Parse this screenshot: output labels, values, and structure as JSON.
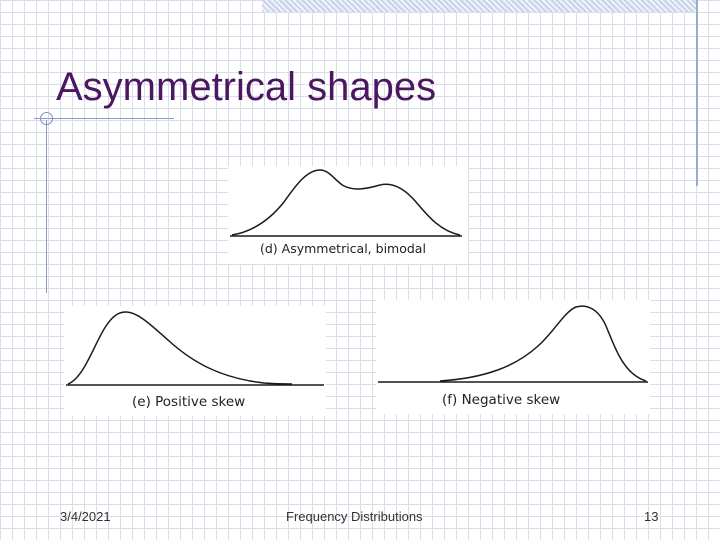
{
  "slide": {
    "title": "Asymmetrical shapes"
  },
  "figures": {
    "d": {
      "caption": "(d) Asymmetrical, bimodal"
    },
    "e": {
      "caption": "(e) Positive skew"
    },
    "f": {
      "caption": "(f) Negative skew"
    }
  },
  "footer": {
    "date": "3/4/2021",
    "title": "Frequency Distributions",
    "page_number": "13"
  },
  "colors": {
    "title": "#4b1760",
    "accent_rule": "#8a9bc8",
    "grid": "#d9dee8"
  }
}
